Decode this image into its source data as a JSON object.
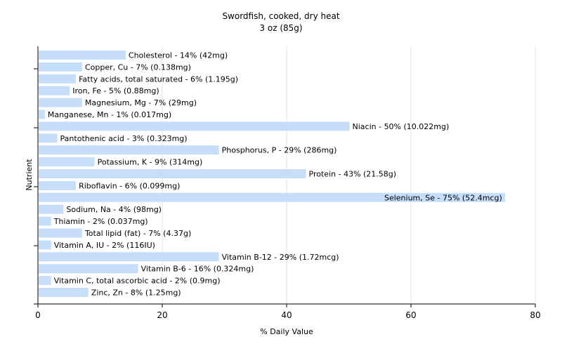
{
  "chart_data": {
    "type": "bar",
    "orientation": "horizontal",
    "title": "Swordfish, cooked, dry heat",
    "subtitle": "3 oz (85g)",
    "xlabel": "% Daily Value",
    "ylabel": "Nutrient",
    "xlim": [
      0,
      80
    ],
    "xticks": [
      0,
      20,
      40,
      60,
      80
    ],
    "grid": true,
    "bar_color": "#c6defa",
    "categories": [
      "Cholesterol",
      "Copper, Cu",
      "Fatty acids, total saturated",
      "Iron, Fe",
      "Magnesium, Mg",
      "Manganese, Mn",
      "Niacin",
      "Pantothenic acid",
      "Phosphorus, P",
      "Potassium, K",
      "Protein",
      "Riboflavin",
      "Selenium, Se",
      "Sodium, Na",
      "Thiamin",
      "Total lipid (fat)",
      "Vitamin A, IU",
      "Vitamin B-12",
      "Vitamin B-6",
      "Vitamin C, total ascorbic acid",
      "Zinc, Zn"
    ],
    "values": [
      14,
      7,
      6,
      5,
      7,
      1,
      50,
      3,
      29,
      9,
      43,
      6,
      75,
      4,
      2,
      7,
      2,
      29,
      16,
      2,
      8
    ],
    "labels": [
      "Cholesterol - 14% (42mg)",
      "Copper, Cu - 7% (0.138mg)",
      "Fatty acids, total saturated - 6% (1.195g)",
      "Iron, Fe - 5% (0.88mg)",
      "Magnesium, Mg - 7% (29mg)",
      "Manganese, Mn - 1% (0.017mg)",
      "Niacin - 50% (10.022mg)",
      "Pantothenic acid - 3% (0.323mg)",
      "Phosphorus, P - 29% (286mg)",
      "Potassium, K - 9% (314mg)",
      "Protein - 43% (21.58g)",
      "Riboflavin - 6% (0.099mg)",
      "Selenium, Se - 75% (52.4mcg)",
      "Sodium, Na - 4% (98mg)",
      "Thiamin - 2% (0.037mg)",
      "Total lipid (fat) - 7% (4.37g)",
      "Vitamin A, IU - 2% (116IU)",
      "Vitamin B-12 - 29% (1.72mcg)",
      "Vitamin B-6 - 16% (0.324mg)",
      "Vitamin C, total ascorbic acid - 2% (0.9mg)",
      "Zinc, Zn - 8% (1.25mg)"
    ]
  }
}
